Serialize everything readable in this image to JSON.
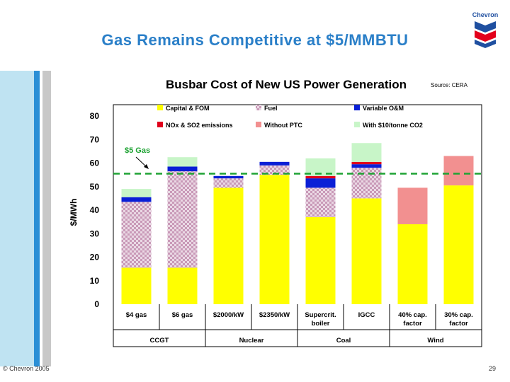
{
  "slide": {
    "title": "Gas Remains Competitive at $5/MMBTU",
    "footer_left": "© Chevron 2005",
    "page_number": "29",
    "logo_text": "Chevron"
  },
  "colors": {
    "capital_fom": "#ffff00",
    "fuel": "#d9b8d0",
    "variable_om": "#0a1fd6",
    "nox_so2": "#e0001b",
    "without_ptc": "#f29090",
    "co2": "#c8f5c8",
    "gas_line": "#1fa334",
    "logo_blue": "#1f4fa0",
    "logo_red": "#e3001b"
  },
  "chart_data": {
    "type": "bar",
    "stacked": true,
    "title": "Busbar Cost of New US Power Generation",
    "source": "Source: CERA",
    "ylabel": "$/MWh",
    "xlabel": "",
    "ylim": [
      0,
      80
    ],
    "yticks": [
      0,
      10,
      20,
      30,
      40,
      50,
      60,
      70,
      80
    ],
    "grid": false,
    "categories": [
      [
        "$4 gas"
      ],
      [
        "$6 gas"
      ],
      [
        "$2000/kW"
      ],
      [
        "$2350/kW"
      ],
      [
        "Supercrit.",
        "boiler"
      ],
      [
        "IGCC"
      ],
      [
        "40% cap.",
        "factor"
      ],
      [
        "30% cap.",
        "factor"
      ]
    ],
    "groups": [
      {
        "label": "CCGT",
        "span": [
          0,
          1
        ]
      },
      {
        "label": "Nuclear",
        "span": [
          2,
          3
        ]
      },
      {
        "label": "Coal",
        "span": [
          4,
          5
        ]
      },
      {
        "label": "Wind",
        "span": [
          6,
          7
        ]
      }
    ],
    "series": [
      {
        "name": "Capital & FOM",
        "key": "capital_fom",
        "values": [
          15.5,
          15.5,
          49.5,
          55,
          37,
          45,
          34,
          50.5
        ]
      },
      {
        "name": "Fuel",
        "key": "fuel",
        "values": [
          28,
          41,
          4,
          4,
          12.5,
          13,
          0,
          0
        ]
      },
      {
        "name": "Variable O&M",
        "key": "variable_om",
        "values": [
          2,
          2,
          1,
          1.5,
          4,
          1.5,
          0,
          0
        ]
      },
      {
        "name": "NOx & SO2 emissions",
        "key": "nox_so2",
        "values": [
          0,
          0,
          0,
          0,
          1,
          1,
          0,
          0
        ]
      },
      {
        "name": "Without PTC",
        "key": "without_ptc",
        "values": [
          0,
          0,
          0,
          0,
          0,
          0,
          15.5,
          12.5
        ]
      },
      {
        "name": "With $10/tonne CO2",
        "key": "co2",
        "values": [
          3.5,
          4,
          0,
          0,
          7.5,
          8,
          0,
          0
        ]
      }
    ],
    "reference_line": {
      "value": 55.5,
      "label": "$5 Gas"
    }
  }
}
